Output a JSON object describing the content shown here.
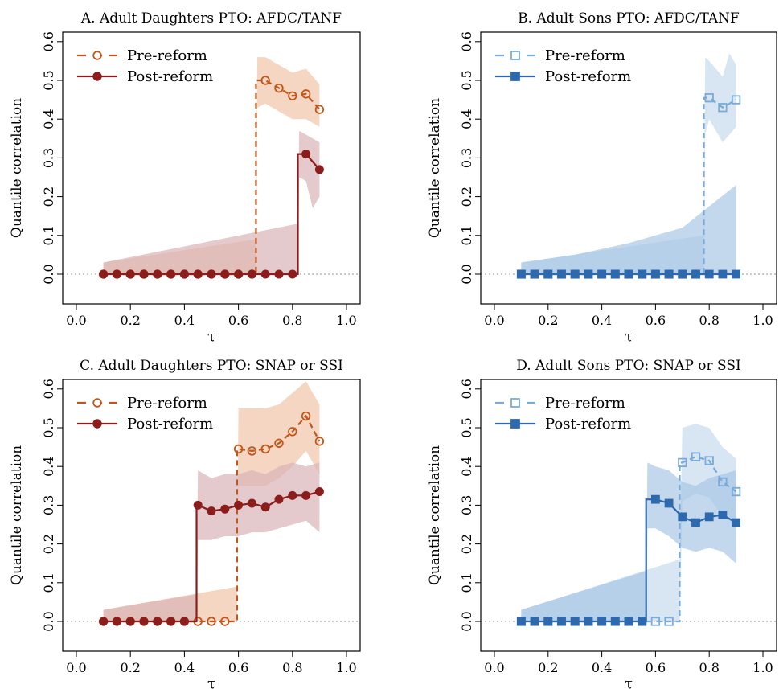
{
  "figure": {
    "xlabel": "τ",
    "ylabel": "Quantile correlation"
  },
  "colors": {
    "orange": "#c0561b",
    "orange_band": "#f0c5a8",
    "darkred": "#8b1d1d",
    "darkred_band": "#d9b3b7",
    "lightblue": "#7aaad8",
    "lightblue_band": "#c7dcf0",
    "blue": "#2e69ad",
    "blue_band": "#a9c6e6",
    "zero_line": "#a8a8a8"
  },
  "chart_data": [
    {
      "type": "line",
      "panel": "A",
      "title": "A. Adult Daughters PTO: AFDC/TANF",
      "xlabel": "τ",
      "ylabel": "Quantile correlation",
      "xlim": [
        0.0,
        1.0
      ],
      "ylim": [
        0.0,
        0.6
      ],
      "xticks": [
        "0.0",
        "0.2",
        "0.4",
        "0.6",
        "0.8",
        "1.0"
      ],
      "yticks": [
        "0.0",
        "0.1",
        "0.2",
        "0.3",
        "0.4",
        "0.5",
        "0.6"
      ],
      "grid": false,
      "legend": "top-left",
      "series": [
        {
          "name": "Pre-reform",
          "style": "dashed",
          "marker": "open-circle",
          "color": "#c0561b",
          "band_color": "#f0c5a8",
          "x": [
            0.1,
            0.15,
            0.2,
            0.25,
            0.3,
            0.35,
            0.4,
            0.45,
            0.5,
            0.55,
            0.6,
            0.65,
            0.7,
            0.75,
            0.8,
            0.85,
            0.9
          ],
          "y": [
            0,
            0,
            0,
            0,
            0,
            0,
            0,
            0,
            0,
            0,
            0,
            0,
            0.5,
            0.48,
            0.46,
            0.465,
            0.425
          ],
          "jump_x": 0.665,
          "band": {
            "x": [
              0.1,
              0.665,
              0.67,
              0.7,
              0.75,
              0.8,
              0.85,
              0.9
            ],
            "lower": [
              0,
              0,
              0.43,
              0.44,
              0.42,
              0.4,
              0.4,
              0.38
            ],
            "upper": [
              0.03,
              0.09,
              0.56,
              0.56,
              0.54,
              0.52,
              0.53,
              0.49
            ]
          }
        },
        {
          "name": "Post-reform",
          "style": "solid",
          "marker": "filled-circle",
          "color": "#8b1d1d",
          "band_color": "#d9b3b7",
          "x": [
            0.1,
            0.15,
            0.2,
            0.25,
            0.3,
            0.35,
            0.4,
            0.45,
            0.5,
            0.55,
            0.6,
            0.65,
            0.7,
            0.75,
            0.8,
            0.85,
            0.9
          ],
          "y": [
            0,
            0,
            0,
            0,
            0,
            0,
            0,
            0,
            0,
            0,
            0,
            0,
            0,
            0,
            0,
            0.31,
            0.27
          ],
          "jump_x": 0.82,
          "band": {
            "x": [
              0.1,
              0.82,
              0.825,
              0.85,
              0.875,
              0.9
            ],
            "lower": [
              0,
              0,
              0.25,
              0.24,
              0.17,
              0.2
            ],
            "upper": [
              0.03,
              0.13,
              0.37,
              0.36,
              0.35,
              0.34
            ]
          }
        }
      ]
    },
    {
      "type": "line",
      "panel": "B",
      "title": "B. Adult Sons PTO: AFDC/TANF",
      "xlabel": "τ",
      "ylabel": "Quantile correlation",
      "xlim": [
        0.0,
        1.0
      ],
      "ylim": [
        0.0,
        0.6
      ],
      "xticks": [
        "0.0",
        "0.2",
        "0.4",
        "0.6",
        "0.8",
        "1.0"
      ],
      "yticks": [
        "0.0",
        "0.1",
        "0.2",
        "0.3",
        "0.4",
        "0.5",
        "0.6"
      ],
      "grid": false,
      "legend": "top-left",
      "series": [
        {
          "name": "Pre-reform",
          "style": "dashed",
          "marker": "open-square",
          "color": "#7aaad8",
          "band_color": "#c7dcf0",
          "x": [
            0.1,
            0.15,
            0.2,
            0.25,
            0.3,
            0.35,
            0.4,
            0.45,
            0.5,
            0.55,
            0.6,
            0.65,
            0.7,
            0.75,
            0.8,
            0.85,
            0.9
          ],
          "y": [
            0,
            0,
            0,
            0,
            0,
            0,
            0,
            0,
            0,
            0,
            0,
            0,
            0,
            0,
            0.455,
            0.43,
            0.45
          ],
          "jump_x": 0.78,
          "band": {
            "x": [
              0.1,
              0.78,
              0.785,
              0.8,
              0.825,
              0.85,
              0.875,
              0.9
            ],
            "lower": [
              0,
              0,
              0.36,
              0.4,
              0.37,
              0.34,
              0.36,
              0.38
            ],
            "upper": [
              0.03,
              0.1,
              0.56,
              0.55,
              0.53,
              0.51,
              0.57,
              0.54
            ]
          }
        },
        {
          "name": "Post-reform",
          "style": "solid",
          "marker": "filled-square",
          "color": "#2e69ad",
          "band_color": "#a9c6e6",
          "x": [
            0.1,
            0.15,
            0.2,
            0.25,
            0.3,
            0.35,
            0.4,
            0.45,
            0.5,
            0.55,
            0.6,
            0.65,
            0.7,
            0.75,
            0.8,
            0.85,
            0.9
          ],
          "y": [
            0,
            0,
            0,
            0,
            0,
            0,
            0,
            0,
            0,
            0,
            0,
            0,
            0,
            0,
            0,
            0,
            0
          ],
          "jump_x": null,
          "band": {
            "x": [
              0.1,
              0.3,
              0.5,
              0.7,
              0.9
            ],
            "lower": [
              0,
              0,
              0,
              0,
              0
            ],
            "upper": [
              0.03,
              0.05,
              0.08,
              0.12,
              0.23
            ]
          }
        }
      ]
    },
    {
      "type": "line",
      "panel": "C",
      "title": "C. Adult Daughters PTO: SNAP or SSI",
      "xlabel": "τ",
      "ylabel": "Quantile correlation",
      "xlim": [
        0.0,
        1.0
      ],
      "ylim": [
        0.0,
        0.6
      ],
      "xticks": [
        "0.0",
        "0.2",
        "0.4",
        "0.6",
        "0.8",
        "1.0"
      ],
      "yticks": [
        "0.0",
        "0.1",
        "0.2",
        "0.3",
        "0.4",
        "0.5",
        "0.6"
      ],
      "grid": false,
      "legend": "top-left",
      "series": [
        {
          "name": "Pre-reform",
          "style": "dashed",
          "marker": "open-circle",
          "color": "#c0561b",
          "band_color": "#f0c5a8",
          "x": [
            0.1,
            0.15,
            0.2,
            0.25,
            0.3,
            0.35,
            0.4,
            0.45,
            0.5,
            0.55,
            0.6,
            0.65,
            0.7,
            0.75,
            0.8,
            0.85,
            0.9
          ],
          "y": [
            0,
            0,
            0,
            0,
            0,
            0,
            0,
            0,
            0,
            0,
            0.445,
            0.44,
            0.445,
            0.46,
            0.49,
            0.53,
            0.465
          ],
          "jump_x": 0.595,
          "band": {
            "x": [
              0.1,
              0.595,
              0.6,
              0.65,
              0.7,
              0.75,
              0.8,
              0.85,
              0.9
            ],
            "lower": [
              0,
              0,
              0.35,
              0.35,
              0.35,
              0.37,
              0.4,
              0.44,
              0.38
            ],
            "upper": [
              0.03,
              0.09,
              0.55,
              0.55,
              0.55,
              0.56,
              0.59,
              0.62,
              0.56
            ]
          }
        },
        {
          "name": "Post-reform",
          "style": "solid",
          "marker": "filled-circle",
          "color": "#8b1d1d",
          "band_color": "#d9b3b7",
          "x": [
            0.1,
            0.15,
            0.2,
            0.25,
            0.3,
            0.35,
            0.4,
            0.45,
            0.5,
            0.55,
            0.6,
            0.65,
            0.7,
            0.75,
            0.8,
            0.85,
            0.9
          ],
          "y": [
            0,
            0,
            0,
            0,
            0,
            0,
            0,
            0.3,
            0.285,
            0.29,
            0.3,
            0.305,
            0.295,
            0.315,
            0.325,
            0.325,
            0.335
          ],
          "jump_x": 0.445,
          "band": {
            "x": [
              0.1,
              0.445,
              0.45,
              0.5,
              0.55,
              0.6,
              0.65,
              0.7,
              0.75,
              0.8,
              0.85,
              0.9
            ],
            "lower": [
              0,
              0,
              0.21,
              0.21,
              0.22,
              0.22,
              0.23,
              0.23,
              0.24,
              0.25,
              0.26,
              0.23
            ],
            "upper": [
              0.03,
              0.07,
              0.39,
              0.37,
              0.38,
              0.38,
              0.39,
              0.38,
              0.4,
              0.41,
              0.4,
              0.41
            ]
          }
        }
      ]
    },
    {
      "type": "line",
      "panel": "D",
      "title": "D. Adult Sons PTO: SNAP or SSI",
      "xlabel": "τ",
      "ylabel": "Quantile correlation",
      "xlim": [
        0.0,
        1.0
      ],
      "ylim": [
        0.0,
        0.6
      ],
      "xticks": [
        "0.0",
        "0.2",
        "0.4",
        "0.6",
        "0.8",
        "1.0"
      ],
      "yticks": [
        "0.0",
        "0.1",
        "0.2",
        "0.3",
        "0.4",
        "0.5",
        "0.6"
      ],
      "grid": false,
      "legend": "top-left",
      "series": [
        {
          "name": "Pre-reform",
          "style": "dashed",
          "marker": "open-square",
          "color": "#7aaad8",
          "band_color": "#c7dcf0",
          "x": [
            0.1,
            0.15,
            0.2,
            0.25,
            0.3,
            0.35,
            0.4,
            0.45,
            0.5,
            0.55,
            0.6,
            0.65,
            0.7,
            0.75,
            0.8,
            0.85,
            0.9
          ],
          "y": [
            0,
            0,
            0,
            0,
            0,
            0,
            0,
            0,
            0,
            0,
            0,
            0,
            0.41,
            0.425,
            0.415,
            0.36,
            0.335
          ],
          "jump_x": 0.69,
          "band": {
            "x": [
              0.1,
              0.69,
              0.7,
              0.75,
              0.8,
              0.85,
              0.9
            ],
            "lower": [
              0,
              0,
              0.31,
              0.33,
              0.32,
              0.27,
              0.25
            ],
            "upper": [
              0.03,
              0.16,
              0.5,
              0.51,
              0.5,
              0.45,
              0.42
            ]
          }
        },
        {
          "name": "Post-reform",
          "style": "solid",
          "marker": "filled-square",
          "color": "#2e69ad",
          "band_color": "#a9c6e6",
          "x": [
            0.1,
            0.15,
            0.2,
            0.25,
            0.3,
            0.35,
            0.4,
            0.45,
            0.5,
            0.55,
            0.6,
            0.65,
            0.7,
            0.75,
            0.8,
            0.85,
            0.9
          ],
          "y": [
            0,
            0,
            0,
            0,
            0,
            0,
            0,
            0,
            0,
            0,
            0.315,
            0.305,
            0.27,
            0.255,
            0.27,
            0.275,
            0.255
          ],
          "jump_x": 0.565,
          "band": {
            "x": [
              0.1,
              0.565,
              0.57,
              0.6,
              0.65,
              0.7,
              0.75,
              0.8,
              0.85,
              0.9
            ],
            "lower": [
              0,
              0,
              0.24,
              0.24,
              0.22,
              0.19,
              0.18,
              0.19,
              0.18,
              0.15
            ],
            "upper": [
              0.03,
              0.13,
              0.41,
              0.4,
              0.39,
              0.36,
              0.35,
              0.37,
              0.38,
              0.39
            ]
          }
        }
      ]
    }
  ]
}
